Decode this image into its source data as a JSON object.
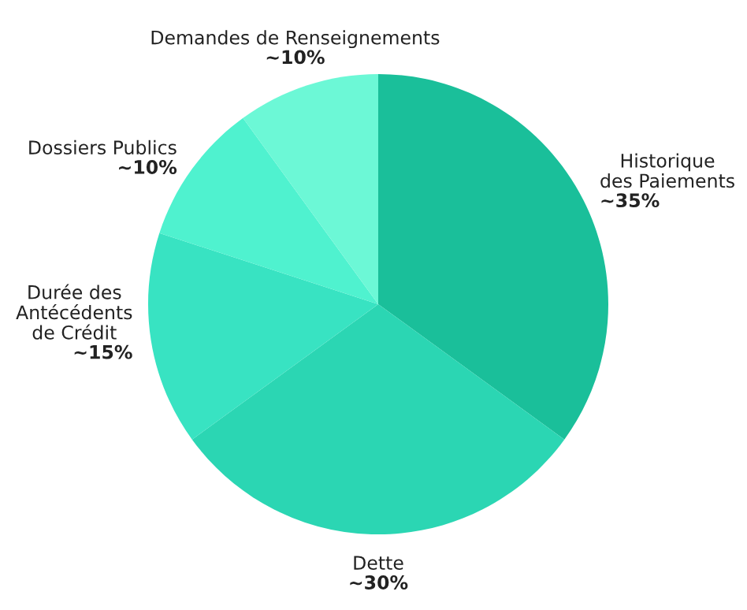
{
  "chart_data": {
    "type": "pie",
    "categories": [
      "Historique\ndes Paiements",
      "Dette",
      "Durée des\nAntécédents\nde Crédit",
      "Dossiers Publics",
      "Demandes de Renseignements"
    ],
    "values": [
      35,
      30,
      15,
      10,
      10
    ],
    "value_labels": [
      "~35%",
      "~30%",
      "~15%",
      "~10%",
      "~10%"
    ],
    "colors": [
      "#1abf9a",
      "#2bd6b3",
      "#38e3c2",
      "#4ff2cf",
      "#6cf8d6"
    ]
  }
}
